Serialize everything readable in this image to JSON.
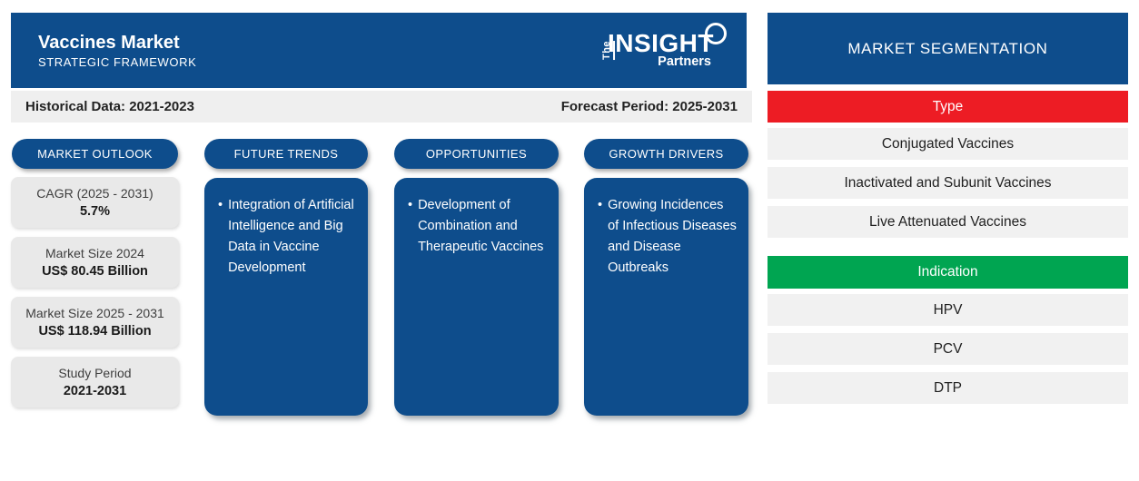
{
  "header": {
    "title": "Vaccines Market",
    "subtitle": "STRATEGIC FRAMEWORK",
    "logo": {
      "the": "The",
      "insight": "INSIGHT",
      "partners": "Partners"
    }
  },
  "period_bar": {
    "historical": "Historical Data: 2021-2023",
    "forecast": "Forecast Period: 2025-2031"
  },
  "bullet_marker": "•",
  "columns": [
    {
      "pill": "MARKET OUTLOOK"
    },
    {
      "pill": "FUTURE TRENDS",
      "bullet": "Integration of Artificial Intelligence and Big Data in Vaccine Development"
    },
    {
      "pill": "OPPORTUNITIES",
      "bullet": "Development of Combination and Therapeutic Vaccines"
    },
    {
      "pill": "GROWTH DRIVERS",
      "bullet": "Growing Incidences of Infectious Diseases and Disease Outbreaks"
    }
  ],
  "outlook_cards": [
    {
      "title": "CAGR (2025 - 2031)",
      "value": "5.7%"
    },
    {
      "title": "Market Size 2024",
      "value": "US$ 80.45 Billion"
    },
    {
      "title": "Market Size 2025 - 2031",
      "value": "US$ 118.94 Billion"
    },
    {
      "title": "Study Period",
      "value": "2021-2031"
    }
  ],
  "segmentation": {
    "title": "MARKET SEGMENTATION",
    "type_label": "Type",
    "type_items": [
      "Conjugated Vaccines",
      "Inactivated and Subunit Vaccines",
      "Live Attenuated Vaccines"
    ],
    "indication_label": "Indication",
    "indication_items": [
      "HPV",
      "PCV",
      "DTP"
    ]
  },
  "colors": {
    "primary_blue": "#0e4d8c",
    "accent_red": "#ed1c24",
    "accent_green": "#00a551",
    "bar_gray": "#efefef",
    "card_gray": "#e9e9e9",
    "row_gray": "#f1f1f1"
  }
}
